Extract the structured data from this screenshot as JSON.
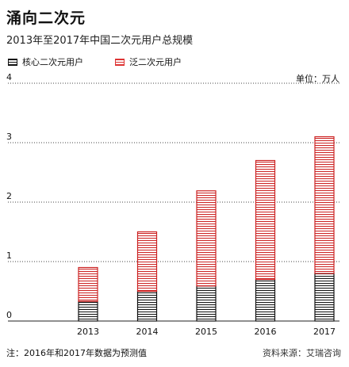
{
  "header": {
    "title": "涌向二次元",
    "subtitle": "2013年至2017年中国二次元用户总规模",
    "unit": "单位：万人"
  },
  "legend": [
    {
      "label": "核心二次元用户",
      "color": "#111111"
    },
    {
      "label": "泛二次元用户",
      "color": "#d33333"
    }
  ],
  "footer": {
    "note": "注：2016年和2017年数据为预测值",
    "source": "资料来源：艾瑞咨询"
  },
  "chart_data": {
    "type": "bar",
    "stacked": true,
    "categories": [
      "2013",
      "2014",
      "2015",
      "2016",
      "2017"
    ],
    "series": [
      {
        "name": "核心二次元用户",
        "values": [
          0.33,
          0.5,
          0.59,
          0.7,
          0.8
        ],
        "color": "#111111"
      },
      {
        "name": "泛二次元用户",
        "values": [
          0.57,
          1.0,
          1.6,
          2.0,
          2.3
        ],
        "color": "#d33333"
      }
    ],
    "ylim": [
      0,
      4
    ],
    "yticks": [
      0,
      1,
      2,
      3,
      4
    ],
    "grid": true
  }
}
